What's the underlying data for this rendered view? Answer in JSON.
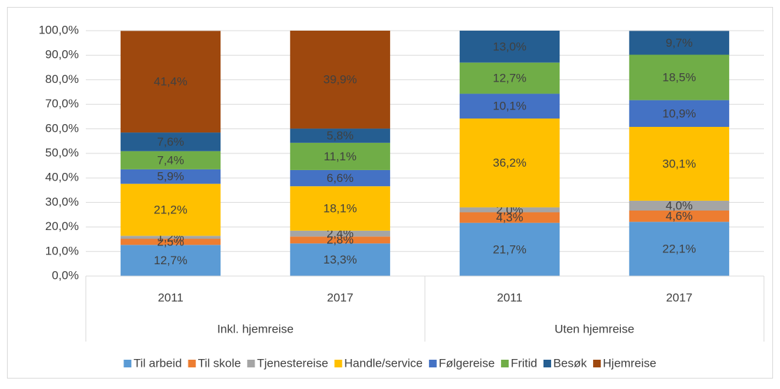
{
  "chart_data": {
    "type": "stacked_bar",
    "categories": [
      "2011",
      "2017",
      "2011",
      "2017"
    ],
    "groups": [
      "Inkl. hjemreise",
      "Uten hjemreise"
    ],
    "ylim": [
      0,
      100
    ],
    "yticks": [
      {
        "value": 0,
        "label": "0,0%"
      },
      {
        "value": 10,
        "label": "10,0%"
      },
      {
        "value": 20,
        "label": "20,0%"
      },
      {
        "value": 30,
        "label": "30,0%"
      },
      {
        "value": 40,
        "label": "40,0%"
      },
      {
        "value": 50,
        "label": "50,0%"
      },
      {
        "value": 60,
        "label": "60,0%"
      },
      {
        "value": 70,
        "label": "70,0%"
      },
      {
        "value": 80,
        "label": "80,0%"
      },
      {
        "value": 90,
        "label": "90,0%"
      },
      {
        "value": 100,
        "label": "100,0%"
      }
    ],
    "grid": true,
    "legend": "bottom",
    "series": [
      {
        "name": "Til arbeid",
        "color": "#5b9bd5",
        "values": [
          12.7,
          13.3,
          21.7,
          22.1
        ],
        "value_labels": [
          "12,7%",
          "13,3%",
          "21,7%",
          "22,1%"
        ]
      },
      {
        "name": "Til skole",
        "color": "#ed7d31",
        "values": [
          2.5,
          2.8,
          4.3,
          4.6
        ],
        "value_labels": [
          "2,5%",
          "2,8%",
          "4,3%",
          "4,6%"
        ]
      },
      {
        "name": "Tjenestereise",
        "color": "#a5a5a5",
        "values": [
          1.2,
          2.4,
          2.0,
          4.0
        ],
        "value_labels": [
          "1,2%",
          "2,4%",
          "2,0%",
          "4,0%"
        ]
      },
      {
        "name": "Handle/service",
        "color": "#ffc000",
        "values": [
          21.2,
          18.1,
          36.2,
          30.1
        ],
        "value_labels": [
          "21,2%",
          "18,1%",
          "36,2%",
          "30,1%"
        ]
      },
      {
        "name": "Følgereise",
        "color": "#4472c4",
        "values": [
          5.9,
          6.6,
          10.1,
          10.9
        ],
        "value_labels": [
          "5,9%",
          "6,6%",
          "10,1%",
          "10,9%"
        ]
      },
      {
        "name": "Fritid",
        "color": "#70ad47",
        "values": [
          7.4,
          11.1,
          12.7,
          18.5
        ],
        "value_labels": [
          "7,4%",
          "11,1%",
          "12,7%",
          "18,5%"
        ]
      },
      {
        "name": "Besøk",
        "color": "#255e91",
        "values": [
          7.6,
          5.8,
          13.0,
          9.7
        ],
        "value_labels": [
          "7,6%",
          "5,8%",
          "13,0%",
          "9,7%"
        ]
      },
      {
        "name": "Hjemreise",
        "color": "#9e480e",
        "values": [
          41.4,
          39.9,
          null,
          null
        ],
        "value_labels": [
          "41,4%",
          "39,9%",
          null,
          null
        ]
      }
    ]
  }
}
